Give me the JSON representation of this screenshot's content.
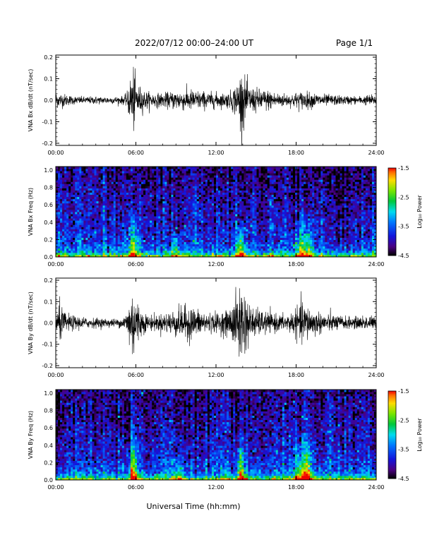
{
  "header": {
    "title": "2022/07/12  00:00–24:00 UT",
    "page": "Page 1/1"
  },
  "footer": {
    "xlabel": "Universal Time (hh:mm)"
  },
  "chart_data": [
    {
      "id": "bx-dbdt",
      "type": "line",
      "ylabel": "VNA Bx dB/dt (nT/sec)",
      "xlim": [
        0,
        24
      ],
      "ylim": [
        -0.21,
        0.21
      ],
      "x_ticks": [
        "00:00",
        "06:00",
        "12:00",
        "18:00",
        "24:00"
      ],
      "y_ticks": [
        -0.2,
        -0.1,
        0.0,
        0.1,
        0.2
      ],
      "y_tick_labels": [
        "-0.2",
        "-0.1",
        "0.0",
        "0.1",
        "0.2"
      ],
      "series": [
        {
          "x": [
            0,
            0.5,
            1,
            1.5,
            2,
            2.5,
            3,
            3.5,
            4,
            4.5,
            5,
            5.3,
            5.6,
            5.8,
            6,
            6.3,
            6.6,
            7,
            7.5,
            8,
            8.5,
            9,
            9.5,
            10,
            10.5,
            11,
            11.5,
            12,
            12.5,
            13,
            13.5,
            13.8,
            14,
            14.2,
            14.5,
            15,
            15.5,
            16,
            16.5,
            17,
            17.5,
            18,
            18.5,
            19,
            19.5,
            20,
            20.5,
            21,
            21.5,
            22,
            22.5,
            23,
            23.5,
            24
          ],
          "amplitude": [
            0.04,
            0.035,
            0.025,
            0.02,
            0.018,
            0.018,
            0.02,
            0.018,
            0.018,
            0.018,
            0.02,
            0.03,
            0.12,
            0.17,
            0.1,
            0.07,
            0.05,
            0.04,
            0.035,
            0.035,
            0.04,
            0.05,
            0.05,
            0.055,
            0.05,
            0.045,
            0.04,
            0.04,
            0.035,
            0.04,
            0.08,
            0.13,
            0.16,
            0.1,
            0.07,
            0.06,
            0.055,
            0.05,
            0.04,
            0.035,
            0.03,
            0.04,
            0.045,
            0.04,
            0.035,
            0.03,
            0.028,
            0.025,
            0.022,
            0.022,
            0.02,
            0.02,
            0.03,
            0.02
          ]
        }
      ]
    },
    {
      "id": "bx-spec",
      "type": "heatmap",
      "ylabel": "VNA Bx Freq (Hz)",
      "colorbar_label": "Log₁₀ Power",
      "xlim": [
        0,
        24
      ],
      "ylim": [
        0,
        1.04
      ],
      "clim": [
        -4.5,
        -1.5
      ],
      "x_ticks": [
        "00:00",
        "06:00",
        "12:00",
        "18:00",
        "24:00"
      ],
      "y_ticks": [
        0.0,
        0.2,
        0.4,
        0.6,
        0.8,
        1.0
      ],
      "y_tick_labels": [
        "0.0",
        "0.2",
        "0.4",
        "0.6",
        "0.8",
        "1.0"
      ],
      "colorbar_ticks": [
        -1.5,
        -2.5,
        -3.5,
        -4.5
      ],
      "colorbar_tick_labels": [
        "-1.5",
        "-2.5",
        "-3.5",
        "-4.5"
      ],
      "enhancements": [
        {
          "t": 5.8,
          "f_max": 0.55,
          "level": -2.4
        },
        {
          "t": 9.0,
          "f_max": 0.35,
          "level": -3.0
        },
        {
          "t": 13.9,
          "f_max": 0.45,
          "level": -2.4
        },
        {
          "t": 18.3,
          "f_max": 0.55,
          "level": -2.6
        },
        {
          "t": 18.9,
          "f_max": 0.55,
          "level": -2.6
        }
      ]
    },
    {
      "id": "by-dbdt",
      "type": "line",
      "ylabel": "VNA By dB/dt (nT/sec)",
      "xlim": [
        0,
        24
      ],
      "ylim": [
        -0.21,
        0.21
      ],
      "x_ticks": [
        "00:00",
        "06:00",
        "12:00",
        "18:00",
        "24:00"
      ],
      "y_ticks": [
        -0.2,
        -0.1,
        0.0,
        0.1,
        0.2
      ],
      "y_tick_labels": [
        "-0.2",
        "-0.1",
        "0.0",
        "0.1",
        "0.2"
      ],
      "series": [
        {
          "x": [
            0,
            0.3,
            0.6,
            1,
            1.5,
            2,
            2.5,
            3,
            3.5,
            4,
            4.5,
            5,
            5.3,
            5.6,
            5.8,
            6,
            6.3,
            6.6,
            7,
            7.5,
            8,
            8.5,
            9,
            9.5,
            10,
            10.5,
            11,
            11.5,
            12,
            12.5,
            13,
            13.5,
            13.8,
            14,
            14.2,
            14.5,
            15,
            15.5,
            16,
            16.5,
            17,
            17.5,
            18,
            18.5,
            19,
            19.5,
            20,
            20.5,
            21,
            21.5,
            22,
            22.5,
            23,
            23.5,
            24
          ],
          "amplitude": [
            0.05,
            0.1,
            0.06,
            0.04,
            0.035,
            0.03,
            0.025,
            0.025,
            0.022,
            0.022,
            0.02,
            0.025,
            0.06,
            0.15,
            0.2,
            0.14,
            0.08,
            0.05,
            0.04,
            0.04,
            0.045,
            0.06,
            0.07,
            0.08,
            0.09,
            0.07,
            0.06,
            0.05,
            0.05,
            0.055,
            0.07,
            0.14,
            0.2,
            0.21,
            0.15,
            0.09,
            0.07,
            0.06,
            0.05,
            0.045,
            0.04,
            0.05,
            0.07,
            0.11,
            0.08,
            0.06,
            0.05,
            0.045,
            0.04,
            0.035,
            0.03,
            0.03,
            0.035,
            0.04,
            0.025
          ]
        }
      ]
    },
    {
      "id": "by-spec",
      "type": "heatmap",
      "ylabel": "VNA By Freq (Hz)",
      "colorbar_label": "Log₁₀ Power",
      "xlim": [
        0,
        24
      ],
      "ylim": [
        0,
        1.04
      ],
      "clim": [
        -4.5,
        -1.5
      ],
      "x_ticks": [
        "00:00",
        "06:00",
        "12:00",
        "18:00",
        "24:00"
      ],
      "y_ticks": [
        0.0,
        0.2,
        0.4,
        0.6,
        0.8,
        1.0
      ],
      "y_tick_labels": [
        "0.0",
        "0.2",
        "0.4",
        "0.6",
        "0.8",
        "1.0"
      ],
      "colorbar_ticks": [
        -1.5,
        -2.5,
        -3.5,
        -4.5
      ],
      "colorbar_tick_labels": [
        "-1.5",
        "-2.5",
        "-3.5",
        "-4.5"
      ],
      "enhancements": [
        {
          "t": 5.8,
          "f_max": 0.6,
          "level": -2.4
        },
        {
          "t": 9.2,
          "f_max": 0.35,
          "level": -2.9
        },
        {
          "t": 13.9,
          "f_max": 0.55,
          "level": -2.4
        },
        {
          "t": 18.3,
          "f_max": 0.55,
          "level": -2.6
        },
        {
          "t": 18.9,
          "f_max": 0.6,
          "level": -2.6
        }
      ]
    }
  ]
}
